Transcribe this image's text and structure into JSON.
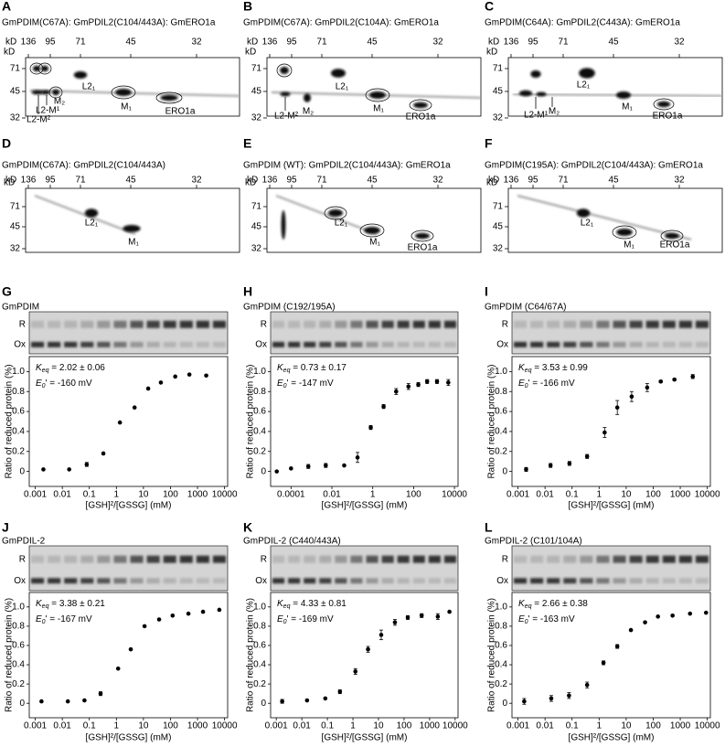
{
  "gel_panels": [
    {
      "letter": "A",
      "title": "GmPDIM(C67A): GmPDIL2(C104/443A): GmERO1a",
      "kd_label": "kD",
      "top_markers": [
        136,
        95,
        71,
        45,
        32
      ],
      "left_markers": [
        71,
        45,
        32
      ],
      "spot_labels": [
        "L2₁",
        "M₂",
        "L2-M¹",
        "L2-M²",
        "M₁",
        "ERO1a"
      ]
    },
    {
      "letter": "B",
      "title": "GmPDIM(C67A): GmPDIL2(C104A): GmERO1a",
      "kd_label": "kD",
      "top_markers": [
        136,
        95,
        71,
        45,
        32
      ],
      "left_markers": [
        71,
        45,
        32
      ],
      "spot_labels": [
        "L2₁",
        "L2-M²",
        "M₂",
        "M₁",
        "ERO1a"
      ]
    },
    {
      "letter": "C",
      "title": "GmPDIM(C64A): GmPDIL2(C443A): GmERO1a",
      "kd_label": "kD",
      "top_markers": [
        136,
        95,
        71,
        45,
        32
      ],
      "left_markers": [
        71,
        45,
        32
      ],
      "spot_labels": [
        "L2₁",
        "L2-M¹",
        "M₂",
        "M₁",
        "ERO1a"
      ]
    },
    {
      "letter": "D",
      "title": "GmPDIM(C67A): GmPDIL2(C104/443A)",
      "kd_label": "kD",
      "top_markers": [
        136,
        95,
        71,
        45,
        32
      ],
      "left_markers": [
        71,
        45,
        32
      ],
      "spot_labels": [
        "L2₁",
        "M₁"
      ]
    },
    {
      "letter": "E",
      "title": "GmPDIM (WT): GmPDIL2(C104/443A): GmERO1a",
      "kd_label": "kD",
      "top_markers": [
        136,
        95,
        71,
        45,
        32
      ],
      "left_markers": [
        71,
        45,
        32
      ],
      "spot_labels": [
        "L2₁",
        "M₁",
        "ERO1a"
      ]
    },
    {
      "letter": "F",
      "title": "GmPDIM(C195A): GmPDIL2(C104/443A): GmERO1a",
      "kd_label": "kD",
      "top_markers": [
        136,
        95,
        71,
        45,
        32
      ],
      "left_markers": [
        71,
        45,
        32
      ],
      "spot_labels": [
        "L2₁",
        "M₁",
        "ERO1a"
      ]
    }
  ],
  "chart_data": [
    {
      "type": "scatter",
      "letter": "G",
      "title": "GmPDIM",
      "gel_labels": [
        "R",
        "Ox"
      ],
      "x": [
        0.002,
        0.018,
        0.08,
        0.33,
        1.35,
        4.7,
        15,
        44,
        150,
        500,
        2100
      ],
      "series": [
        {
          "color": "#000000",
          "values": [
            0.02,
            0.02,
            0.07,
            0.18,
            0.49,
            0.64,
            0.83,
            0.89,
            0.95,
            0.97,
            0.96
          ],
          "errors": [
            null,
            null,
            0.02,
            null,
            null,
            null,
            null,
            null,
            null,
            null,
            null
          ]
        }
      ],
      "log_x": true,
      "xlim": [
        0.0006,
        13000
      ],
      "xticks": [
        0.001,
        0.01,
        0.1,
        1,
        10,
        100,
        1000,
        10000
      ],
      "ylim": [
        -0.15,
        1.15
      ],
      "yticks": [
        0,
        0.2,
        0.4,
        0.6,
        0.8,
        {
          "value": 1,
          "label": "1.0"
        }
      ],
      "xlabel": "[GSH]²/[GSSG] (mM)",
      "ylabel": "Ratio of reduced protein (%)",
      "keq": {
        "symbol": "K",
        "subscript": "eq",
        "text": " = 2.02 ± 0.06"
      },
      "e0": {
        "symbol": "E",
        "subscript": "0",
        "text": "' = -160 mV"
      }
    },
    {
      "type": "scatter",
      "letter": "H",
      "title": "GmPDIM (C192/195A)",
      "gel_labels": [
        "R",
        "Ox"
      ],
      "x": [
        2e-05,
        0.0001,
        0.0007,
        0.005,
        0.04,
        0.18,
        0.8,
        3.4,
        14,
        56,
        170,
        460,
        1400,
        5000
      ],
      "series": [
        {
          "color": "#000000",
          "values": [
            0.0,
            0.03,
            0.05,
            0.06,
            0.06,
            0.14,
            0.44,
            0.65,
            0.8,
            0.85,
            0.87,
            0.9,
            0.9,
            0.89
          ],
          "errors": [
            null,
            null,
            0.02,
            0.02,
            null,
            0.05,
            0.02,
            0.02,
            0.03,
            0.03,
            0.02,
            0.02,
            0.02,
            0.03
          ]
        }
      ],
      "log_x": true,
      "xlim": [
        1e-05,
        15000
      ],
      "xticks": [
        0.0001,
        0.01,
        1,
        100,
        10000
      ],
      "ylim": [
        -0.15,
        1.15
      ],
      "yticks": [
        0,
        0.2,
        0.4,
        0.6,
        0.8,
        {
          "value": 1,
          "label": "1.0"
        }
      ],
      "xlabel": "[GSH]²/[GSSG] (mM)",
      "ylabel": "Ratio of reduced protein (%)",
      "keq": {
        "symbol": "K",
        "subscript": "eq",
        "text": " = 0.73 ± 0.17"
      },
      "e0": {
        "symbol": "E",
        "subscript": "0",
        "text": "' = -147 mV"
      }
    },
    {
      "type": "scatter",
      "letter": "I",
      "title": "GmPDIM (C64/67A)",
      "gel_labels": [
        "R",
        "Ox"
      ],
      "x": [
        0.002,
        0.016,
        0.08,
        0.36,
        1.6,
        4.7,
        16,
        60,
        190,
        610,
        2900
      ],
      "series": [
        {
          "color": "#000000",
          "values": [
            0.02,
            0.06,
            0.08,
            0.15,
            0.39,
            0.64,
            0.75,
            0.84,
            0.9,
            0.92,
            0.95
          ],
          "errors": [
            0.02,
            0.02,
            0.02,
            0.02,
            0.05,
            0.07,
            0.05,
            0.04,
            0.01,
            0.01,
            0.02
          ]
        }
      ],
      "log_x": true,
      "xlim": [
        0.0006,
        13000
      ],
      "xticks": [
        0.001,
        0.01,
        0.1,
        1,
        10,
        100,
        1000,
        10000
      ],
      "ylim": [
        -0.15,
        1.15
      ],
      "yticks": [
        0,
        0.2,
        0.4,
        0.6,
        0.8,
        {
          "value": 1,
          "label": "1.0"
        }
      ],
      "xlabel": "[GSH]²/[GSSG] (mM)",
      "ylabel": "Ratio of reduced protein (%)",
      "keq": {
        "symbol": "K",
        "subscript": "eq",
        "text": " = 3.53 ± 0.99"
      },
      "e0": {
        "symbol": "E",
        "subscript": "0",
        "text": "' = -166 mV"
      }
    },
    {
      "type": "scatter",
      "letter": "J",
      "title": "GmPDIL-2",
      "gel_labels": [
        "R",
        "Ox"
      ],
      "x": [
        0.0017,
        0.016,
        0.066,
        0.26,
        1.16,
        3.4,
        11,
        38,
        120,
        460,
        1600,
        6400
      ],
      "series": [
        {
          "color": "#000000",
          "values": [
            0.02,
            0.02,
            0.03,
            0.1,
            0.36,
            0.56,
            0.8,
            0.87,
            0.91,
            0.93,
            0.95,
            0.97
          ],
          "errors": [
            null,
            null,
            null,
            0.02,
            null,
            null,
            null,
            null,
            null,
            null,
            null,
            null
          ]
        }
      ],
      "log_x": true,
      "xlim": [
        0.0006,
        13000
      ],
      "xticks": [
        0.001,
        0.01,
        0.1,
        1,
        10,
        100,
        1000,
        10000
      ],
      "ylim": [
        -0.15,
        1.15
      ],
      "yticks": [
        0,
        0.2,
        0.4,
        0.6,
        0.8,
        {
          "value": 1,
          "label": "1.0"
        }
      ],
      "xlabel": "[GSH]²/[GSSG] (mM)",
      "ylabel": "Ratio of reduced protein (%)",
      "keq": {
        "symbol": "K",
        "subscript": "eq",
        "text": " = 3.38 ± 0.21"
      },
      "e0": {
        "symbol": "E",
        "subscript": "0",
        "text": "' = -167 mV"
      }
    },
    {
      "type": "scatter",
      "letter": "K",
      "title": "GmPDIL-2 (C440/443A)",
      "gel_labels": [
        "R",
        "Ox"
      ],
      "x": [
        0.0017,
        0.016,
        0.083,
        0.31,
        1.25,
        3.9,
        12.8,
        44,
        140,
        490,
        2100,
        6000
      ],
      "series": [
        {
          "color": "#000000",
          "values": [
            0.02,
            0.03,
            0.05,
            0.12,
            0.33,
            0.56,
            0.71,
            0.84,
            0.89,
            0.91,
            0.9,
            0.95
          ],
          "errors": [
            0.02,
            null,
            null,
            0.02,
            0.03,
            0.03,
            0.05,
            0.03,
            0.02,
            0.02,
            0.03,
            null
          ]
        }
      ],
      "log_x": true,
      "xlim": [
        0.0006,
        13000
      ],
      "xticks": [
        0.001,
        0.01,
        0.1,
        1,
        10,
        100,
        1000,
        10000
      ],
      "ylim": [
        -0.15,
        1.15
      ],
      "yticks": [
        0,
        0.2,
        0.4,
        0.6,
        0.8,
        {
          "value": 1,
          "label": "1.0"
        }
      ],
      "xlabel": "[GSH]²/[GSSG] (mM)",
      "ylabel": "Ratio of reduced protein (%)",
      "keq": {
        "symbol": "K",
        "subscript": "eq",
        "text": " = 4.33 ± 0.81"
      },
      "e0": {
        "symbol": "E",
        "subscript": "0",
        "text": "' = -169 mV"
      }
    },
    {
      "type": "scatter",
      "letter": "L",
      "title": "GmPDIL-2 (C101/104A)",
      "gel_labels": [
        "R",
        "Ox"
      ],
      "x": [
        0.0017,
        0.017,
        0.077,
        0.36,
        1.45,
        4.7,
        15,
        50,
        150,
        520,
        2300,
        9000
      ],
      "series": [
        {
          "color": "#000000",
          "values": [
            0.02,
            0.05,
            0.08,
            0.19,
            0.42,
            0.59,
            0.76,
            0.84,
            0.9,
            0.91,
            0.93,
            0.94
          ],
          "errors": [
            0.03,
            0.03,
            0.03,
            0.03,
            0.02,
            0.02,
            null,
            null,
            null,
            null,
            null,
            null
          ]
        }
      ],
      "log_x": true,
      "xlim": [
        0.0006,
        13000
      ],
      "xticks": [
        0.001,
        0.01,
        0.1,
        1,
        10,
        100,
        1000,
        10000
      ],
      "ylim": [
        -0.15,
        1.15
      ],
      "yticks": [
        0,
        0.2,
        0.4,
        0.6,
        0.8,
        {
          "value": 1,
          "label": "1.0"
        }
      ],
      "xlabel": "[GSH]²/[GSSG] (mM)",
      "ylabel": "Ratio of reduced protein (%)",
      "keq": {
        "symbol": "K",
        "subscript": "eq",
        "text": " = 2.66 ± 0.38"
      },
      "e0": {
        "symbol": "E",
        "subscript": "0",
        "text": "' = -163 mV"
      }
    }
  ]
}
